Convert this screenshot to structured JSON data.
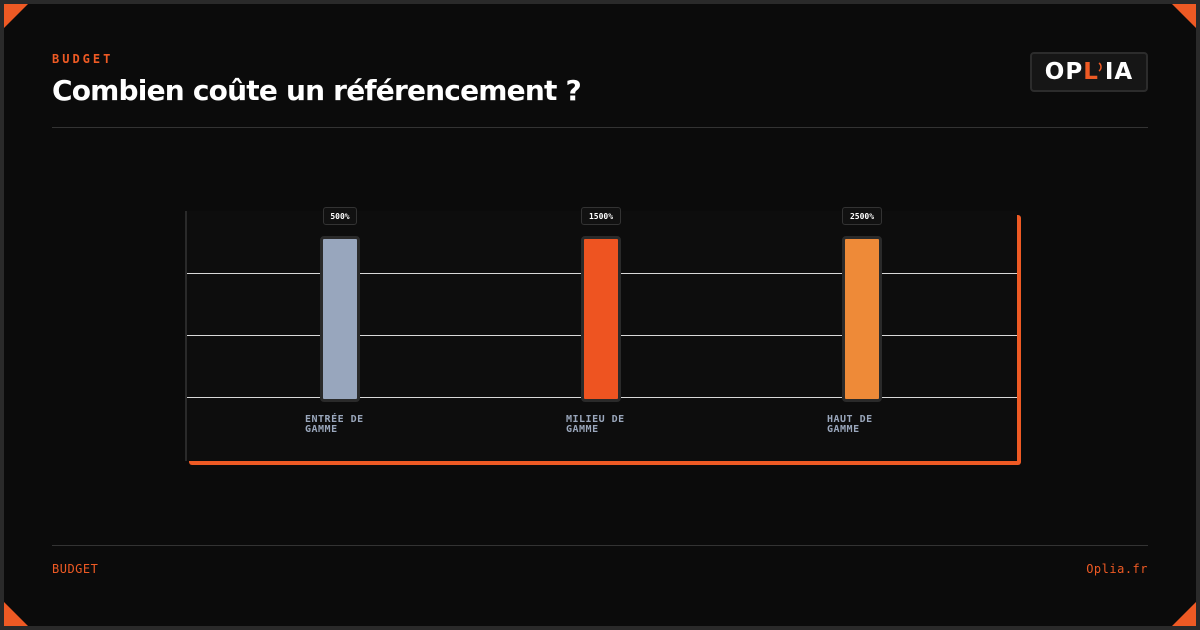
{
  "header": {
    "eyebrow": "BUDGET",
    "title": "Combien coûte un référencement ?"
  },
  "logo": {
    "left": "OP",
    "middle": "L",
    "right": "IA",
    "accent_color": "#ee5a24"
  },
  "footer": {
    "left": "BUDGET",
    "right": "Oplia.fr"
  },
  "colors": {
    "accent": "#ee5a24",
    "background": "#0b0b0b"
  },
  "chart_data": {
    "type": "bar",
    "categories": [
      "ENTRÉE DE\nGAMME",
      "MILIEU DE\nGAMME",
      "HAUT DE\nGAMME"
    ],
    "values": [
      500,
      1500,
      2500
    ],
    "value_labels": [
      "500%",
      "1500%",
      "2500%"
    ],
    "bar_colors": [
      "#98a6bd",
      "#ee5421",
      "#ee8a38"
    ],
    "grid": true
  }
}
